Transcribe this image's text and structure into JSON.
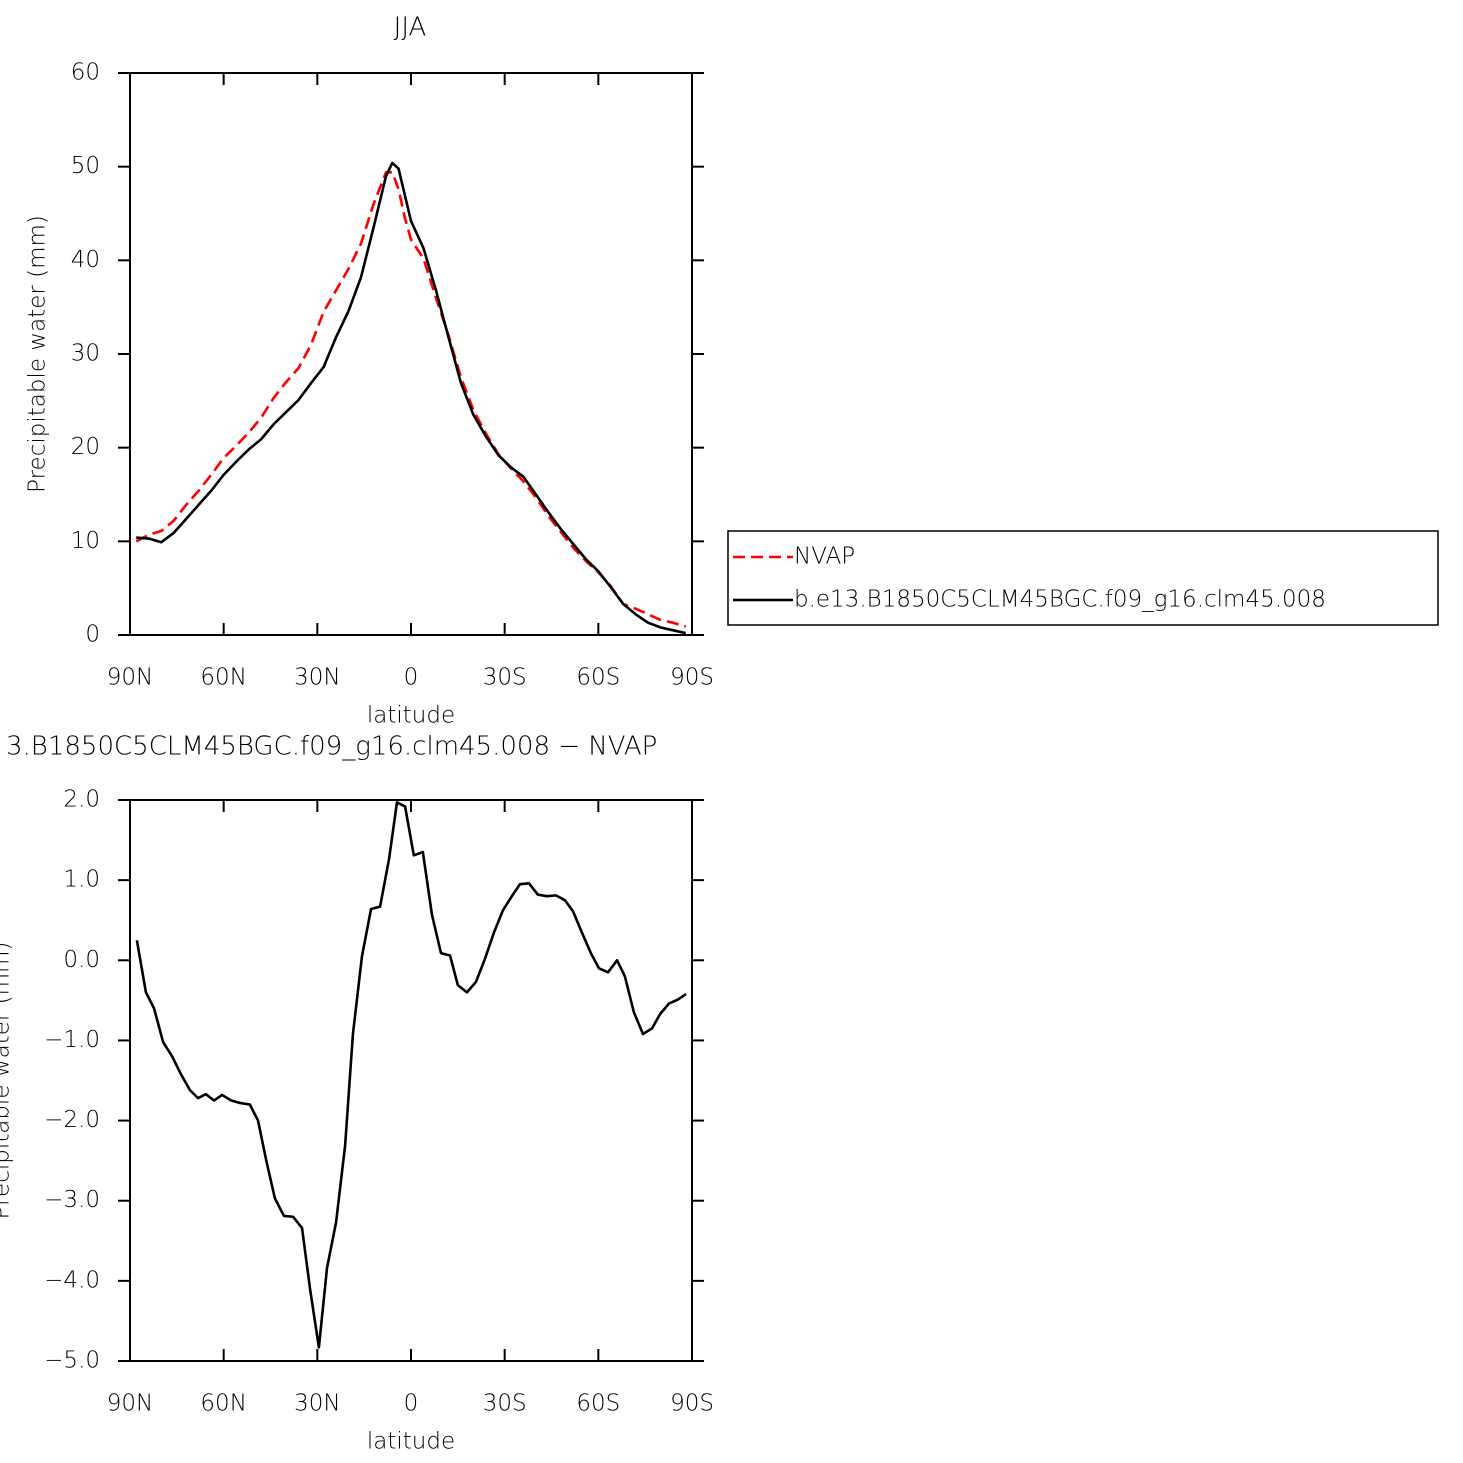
{
  "chart_data": [
    {
      "type": "line",
      "title": "JJA",
      "xlabel": "latitude",
      "ylabel": "Precipitable water (mm)",
      "x": [
        88,
        84,
        80,
        76,
        72,
        68,
        64,
        60,
        56,
        52,
        48,
        44,
        40,
        36,
        32,
        28,
        24,
        20,
        16,
        12,
        8,
        6,
        4,
        2,
        0,
        -4,
        -8,
        -12,
        -16,
        -20,
        -24,
        -28,
        -32,
        -36,
        -40,
        -44,
        -48,
        -52,
        -56,
        -60,
        -64,
        -68,
        -72,
        -76,
        -80,
        -84,
        -88
      ],
      "series": [
        {
          "name": "NVAP",
          "color": "#ff0000",
          "dash": true,
          "values": [
            10.0,
            10.7,
            11.1,
            12.2,
            13.9,
            15.4,
            17.1,
            18.9,
            20.2,
            21.6,
            23.2,
            25.3,
            27.0,
            28.5,
            31.0,
            34.5,
            36.8,
            39.1,
            41.8,
            46,
            49.4,
            49.4,
            47.6,
            44.6,
            42.2,
            40.2,
            36,
            32,
            27.5,
            24,
            21.5,
            19.3,
            17.8,
            16.4,
            14.7,
            12.7,
            11,
            9.3,
            7.9,
            6.7,
            5.2,
            3.3,
            2.8,
            2.2,
            1.6,
            1.3,
            0.9
          ]
        },
        {
          "name": "b.e13.B1850C5CLM45BGC.f09_g16.clm45.008",
          "color": "#000000",
          "dash": false,
          "values": [
            10.4,
            10.3,
            9.9,
            10.9,
            12.4,
            13.9,
            15.4,
            17.1,
            18.5,
            19.8,
            20.9,
            22.5,
            23.8,
            25.1,
            26.9,
            28.6,
            31.8,
            34.6,
            38.2,
            43.5,
            49,
            50.4,
            49.8,
            47,
            44.2,
            41.3,
            36.8,
            31.8,
            26.9,
            23.5,
            21.2,
            19.2,
            17.9,
            16.9,
            15,
            13.1,
            11.3,
            9.7,
            8.1,
            6.8,
            5.1,
            3.3,
            2.2,
            1.3,
            0.8,
            0.5,
            0.2
          ]
        }
      ],
      "xlim": [
        90,
        -90
      ],
      "xticks": [
        {
          "value": 90,
          "label": "90N"
        },
        {
          "value": 60,
          "label": "60N"
        },
        {
          "value": 30,
          "label": "30N"
        },
        0,
        {
          "value": -30,
          "label": "30S"
        },
        {
          "value": -60,
          "label": "60S"
        },
        {
          "value": -90,
          "label": "90S"
        }
      ],
      "ylim": [
        0,
        60
      ],
      "yticks": [
        0,
        10,
        20,
        30,
        40,
        50,
        60
      ],
      "legend": "right"
    },
    {
      "type": "line",
      "title": "3.B1850C5CLM45BGC.f09_g16.clm45.008 − NVAP",
      "xlabel": "latitude",
      "ylabel": "Precipitable water (mm)",
      "x": [
        87.8,
        84.9,
        82.3,
        79.4,
        76.5,
        73.7,
        70.8,
        68.2,
        65.7,
        63.1,
        60.5,
        57.6,
        54.8,
        51.6,
        49,
        46.4,
        43.6,
        40.7,
        37.8,
        34.9,
        32.3,
        29.5,
        26.9,
        24,
        21.1,
        18.6,
        15.7,
        12.8,
        9.9,
        7,
        4.5,
        1.9,
        -0.9,
        -3.8,
        -6.7,
        -9.6,
        -12.5,
        -15,
        -17.9,
        -20.8,
        -23.7,
        -26.6,
        -29.4,
        -32.3,
        -34.9,
        -37.8,
        -40.6,
        -43.5,
        -46.4,
        -49.3,
        -51.9,
        -54.7,
        -57.6,
        -60.2,
        -63.1,
        -66,
        -68.5,
        -71.4,
        -74.3,
        -77.2,
        -79.8,
        -82.6,
        -85.5,
        -88.1
      ],
      "series": [
        {
          "color": "#000000",
          "dash": false,
          "values": [
            0.25,
            -0.4,
            -0.6,
            -1.02,
            -1.2,
            -1.42,
            -1.62,
            -1.72,
            -1.67,
            -1.75,
            -1.68,
            -1.75,
            -1.78,
            -1.8,
            -2.0,
            -2.49,
            -2.97,
            -3.19,
            -3.2,
            -3.34,
            -4.11,
            -4.83,
            -3.84,
            -3.27,
            -2.31,
            -0.92,
            0.05,
            0.64,
            0.67,
            1.27,
            1.97,
            1.92,
            1.31,
            1.35,
            0.57,
            0.09,
            0.06,
            -0.31,
            -0.4,
            -0.27,
            0.02,
            0.35,
            0.62,
            0.8,
            0.95,
            0.96,
            0.82,
            0.8,
            0.81,
            0.75,
            0.61,
            0.35,
            0.09,
            -0.1,
            -0.15,
            0,
            -0.2,
            -0.65,
            -0.92,
            -0.85,
            -0.67,
            -0.54,
            -0.49,
            -0.42
          ]
        }
      ],
      "xlim": [
        90,
        -90
      ],
      "xticks": [
        {
          "value": 90,
          "label": "90N"
        },
        {
          "value": 60,
          "label": "60N"
        },
        {
          "value": 30,
          "label": "30N"
        },
        0,
        {
          "value": -30,
          "label": "30S"
        },
        {
          "value": -60,
          "label": "60S"
        },
        {
          "value": -90,
          "label": "90S"
        }
      ],
      "ylim": [
        -5,
        2
      ],
      "yticks": [
        {
          "value": -5,
          "label": "−5.0"
        },
        {
          "value": -4,
          "label": "−4.0"
        },
        {
          "value": -3,
          "label": "−3.0"
        },
        {
          "value": -2,
          "label": "−2.0"
        },
        {
          "value": -1,
          "label": "−1.0"
        },
        {
          "value": 0,
          "label": "0.0"
        },
        {
          "value": 1,
          "label": "1.0"
        },
        {
          "value": 2,
          "label": "2.0"
        }
      ]
    }
  ]
}
